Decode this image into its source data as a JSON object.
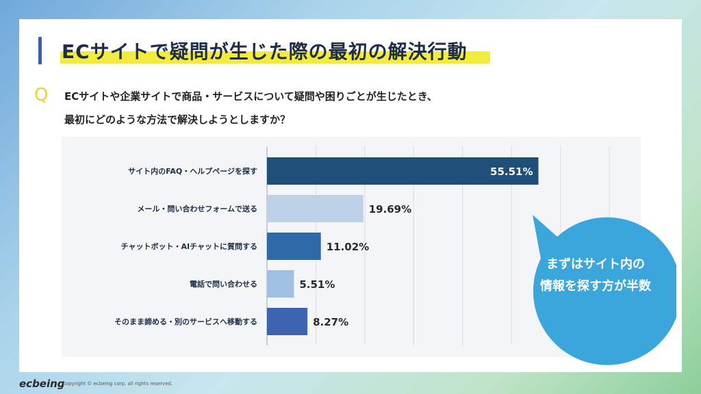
{
  "title": "ECサイトで疑問が生じた際の最初の解決行動",
  "question_mark": "Q",
  "question_lines": [
    "ECサイトや企業サイトで商品・サービスについて疑問や困りごとが生じたとき、",
    "最初にどのような方法で解決しようとしますか？"
  ],
  "callout": {
    "line1": "まずはサイト内の",
    "line2": "情報を探す方が半数"
  },
  "footer": {
    "logo": "ecbeing",
    "copyright": "copyright © ecbeing corp. all rights reserved."
  },
  "colors": {
    "accent_blue": "#3c5ea8",
    "highlight_yellow": "#f4ec3c",
    "bubble": "#3aa6dc"
  },
  "chart_data": {
    "type": "bar",
    "orientation": "horizontal",
    "categories": [
      "サイト内のFAQ・ヘルプページを探す",
      "メール・問い合わせフォームで送る",
      "チャットボット・AIチャットに質問する",
      "電話で問い合わせる",
      "そのまま諦める・別のサービスへ移動する"
    ],
    "values": [
      55.51,
      19.69,
      11.02,
      5.51,
      8.27
    ],
    "value_labels": [
      "55.51%",
      "19.69%",
      "11.02%",
      "5.51%",
      "8.27%"
    ],
    "bar_colors": [
      "#1f4e79",
      "#bdd1e9",
      "#2e6aa8",
      "#9fc0e2",
      "#3c62b0"
    ],
    "xlim": [
      0,
      70
    ],
    "grid": true
  }
}
